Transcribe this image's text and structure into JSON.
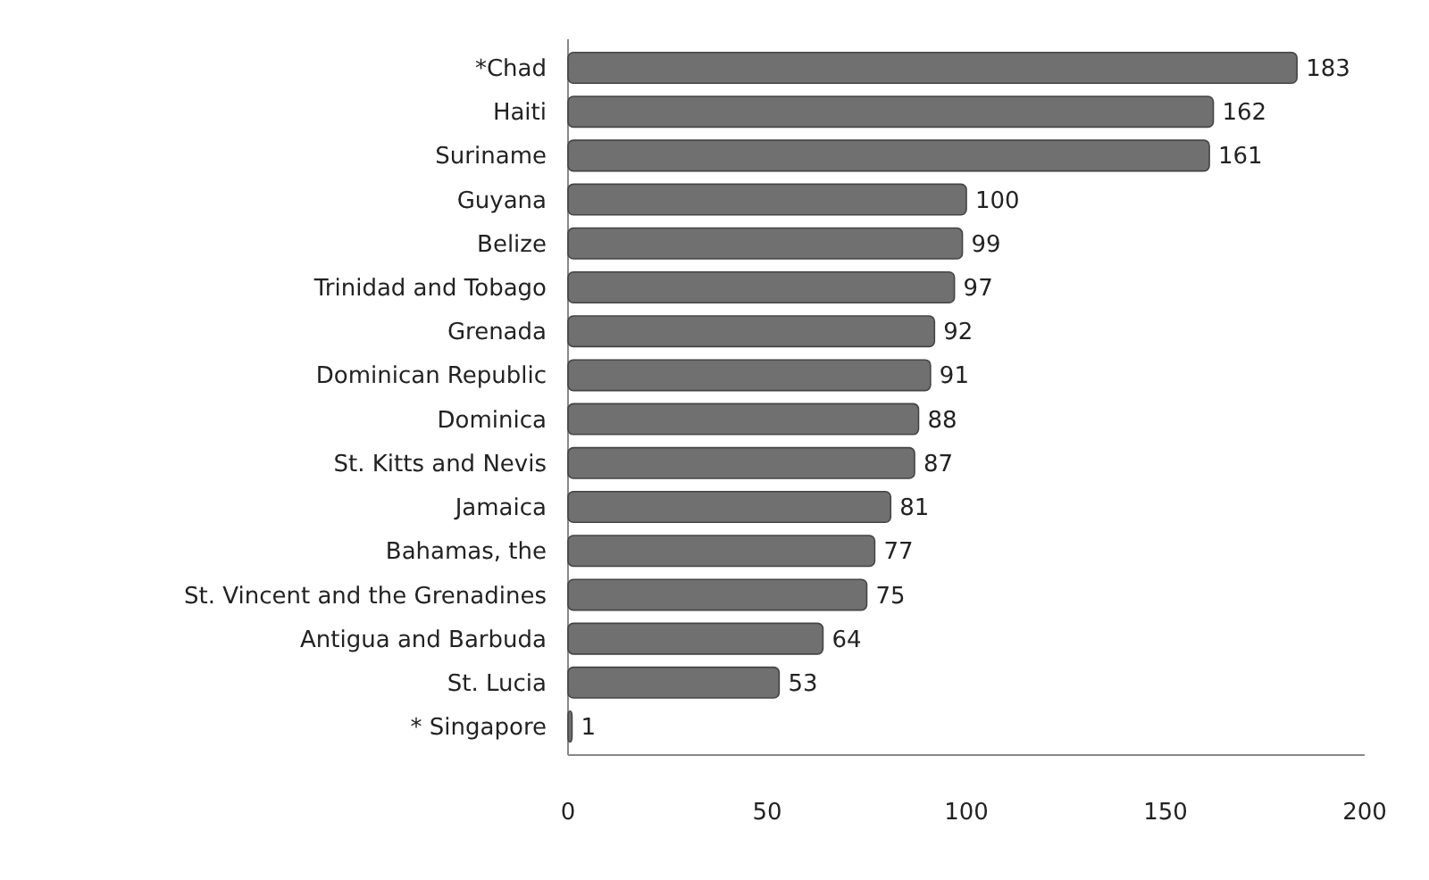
{
  "chart_data": {
    "type": "bar",
    "orientation": "horizontal",
    "categories": [
      "*Chad",
      "Haiti",
      "Suriname",
      "Guyana",
      "Belize",
      "Trinidad and Tobago",
      "Grenada",
      "Dominican Republic",
      "Dominica",
      "St. Kitts and Nevis",
      "Jamaica",
      "Bahamas, the",
      "St. Vincent and the Grenadines",
      "Antigua and Barbuda",
      "St. Lucia",
      "* Singapore"
    ],
    "values": [
      183,
      162,
      161,
      100,
      99,
      97,
      92,
      91,
      88,
      87,
      81,
      77,
      75,
      64,
      53,
      1
    ],
    "color": "#707070",
    "xlim": [
      0,
      200
    ],
    "xticks": [
      0,
      50,
      100,
      150,
      200
    ],
    "data_labels": true,
    "grid": false
  }
}
